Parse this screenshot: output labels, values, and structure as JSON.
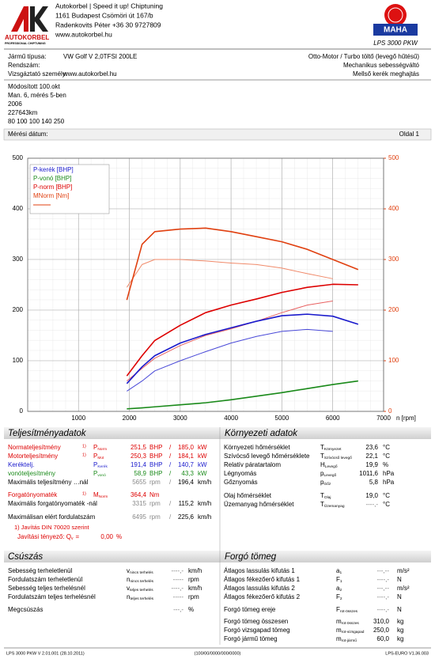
{
  "header": {
    "logo_text": "AUTOKORBEL",
    "logo_sub": "PROFESSIONAL CHIPTUNING",
    "company": [
      "Autokorbel | Speed it up! Chiptuning",
      "1161 Budapest Csömöri út 167/b",
      "Radenkovits Péter +36 30 9727809",
      "www.autokorbel.hu"
    ],
    "brand": "MAHA",
    "model": "LPS 3000 PKW"
  },
  "vehicle": {
    "left": [
      {
        "label": "Jármű típusa:",
        "value": "VW Golf V 2,0TFSI 200LE"
      },
      {
        "label": "Rendszám:"
      },
      {
        "label": "Vizsgáztató személy:",
        "value": "www.autokorbel.hu"
      }
    ],
    "right": [
      "Otto-Motor / Turbo töltő (levegő hűtésű)",
      "Mechanikus sebességváltó",
      "Mellső kerék meghajtás"
    ]
  },
  "notes": [
    "Módosított 100.okt",
    "Man. 6, mérés 5-ben",
    "2006",
    "227643km",
    "80 100 100 140 250"
  ],
  "date_label": "Mérési dátum:",
  "page": "Oldal 1",
  "chart_data": {
    "type": "line",
    "xlabel": "n [rpm]",
    "x": [
      1950,
      2250,
      2500,
      3000,
      3500,
      4000,
      4500,
      5000,
      5500,
      6000,
      6500
    ],
    "series": [
      {
        "color": "#f08a6a",
        "axis": "y2",
        "width": 1,
        "values": [
          245,
          290,
          300,
          300,
          297,
          293,
          290,
          283,
          272,
          262,
          null
        ]
      },
      {
        "color": "#e86060",
        "width": 1,
        "values": [
          60,
          85,
          105,
          130,
          150,
          163,
          178,
          195,
          210,
          218,
          null
        ]
      },
      {
        "color": "#4a4ad8",
        "width": 1,
        "values": [
          40,
          60,
          80,
          100,
          118,
          135,
          148,
          158,
          162,
          158,
          null
        ]
      },
      {
        "name": "P-kerék [BHP]",
        "color": "#1a1acc",
        "width": 1.6,
        "values": [
          55,
          88,
          110,
          135,
          152,
          165,
          178,
          189,
          192,
          188,
          172
        ]
      },
      {
        "name": "P-vonó [BHP]",
        "color": "#1a8a1a",
        "width": 1.6,
        "values": [
          5,
          7,
          9,
          13,
          17,
          23,
          30,
          37,
          45,
          53,
          60
        ]
      },
      {
        "name": "P-norm [BHP]",
        "color": "#dd0000",
        "width": 1.6,
        "values": [
          70,
          110,
          140,
          170,
          195,
          210,
          222,
          235,
          245,
          251,
          250
        ]
      },
      {
        "name": "MNorm [Nm]",
        "color": "#e04010",
        "axis": "y2",
        "width": 1.6,
        "values": [
          220,
          330,
          355,
          360,
          362,
          355,
          345,
          335,
          320,
          300,
          280
        ]
      }
    ],
    "xlim": [
      0,
      7000
    ],
    "xticks": [
      1000,
      2000,
      3000,
      4000,
      5000,
      6000,
      7000
    ],
    "ylim": [
      0,
      500
    ],
    "yticks": [
      0,
      100,
      200,
      300,
      400,
      500
    ],
    "y2lim": [
      0,
      500
    ],
    "y2ticks": [
      0,
      100,
      200,
      300,
      400,
      500
    ],
    "y2color": "#e04010",
    "grid": true,
    "legend": "upper left"
  },
  "performance": {
    "title": "Teljesítményadatok",
    "rows": [
      {
        "label": "Normateljesítmény",
        "note": "1)",
        "sym": "P",
        "sub": "Norm",
        "v1": "251,5",
        "u1": "BHP",
        "sep": "/",
        "v2": "185,0",
        "u2": "kW",
        "color": "#dd0000",
        "value_color": "#dd0000"
      },
      {
        "label": "Motorteljesítmény",
        "note": "1)",
        "sym": "P",
        "sub": "Mot",
        "v1": "250,3",
        "u1": "BHP",
        "sep": "/",
        "v2": "184,1",
        "u2": "kW",
        "color": "#dd0000",
        "value_color": "#dd0000"
      },
      {
        "label": "Keréktelj.",
        "sym": "P",
        "sub": "Kerék",
        "v1": "191,4",
        "u1": "BHP",
        "sep": "/",
        "v2": "140,7",
        "u2": "kW",
        "color": "#1a1acc",
        "value_color": "#1a1acc"
      },
      {
        "label": "vonóteljesítmény",
        "sym": "P",
        "sub": "vonó",
        "v1": "58,9",
        "u1": "BHP",
        "sep": "/",
        "v2": "43,3",
        "u2": "kW",
        "color": "#1a8a1a",
        "value_color": "#1a8a1a"
      },
      {
        "label": "Maximális teljesítmény …nál",
        "v1": "5655",
        "u1": "rpm",
        "sep": "/",
        "v2": "196,4",
        "u2": "km/h",
        "color": "#000000",
        "value_color": "#888888"
      },
      {
        "label": "Forgatónyomaték",
        "note": "1)",
        "sym": "M",
        "sub": "Norm",
        "v1": "364,4",
        "u1": "Nm",
        "color": "#dd0000",
        "value_color": "#dd0000"
      },
      {
        "label": "Maximális forgatónyomaték -nál",
        "v1": "3315",
        "u1": "rpm",
        "sep": "/",
        "v2": "115,2",
        "u2": "km/h",
        "color": "#000000",
        "value_color": "#888888"
      },
      {
        "label": "Maximálisan elért fordulatszám",
        "v1": "6495",
        "u1": "rpm",
        "sep": "/",
        "v2": "225,6",
        "u2": "km/h",
        "color": "#000000",
        "value_color": "#888888"
      }
    ],
    "footnote": "1) Javítás DIN 70020 szerint",
    "factor_label": "Javítási tényező: Q",
    "factor_sub": "v",
    "factor_eq": "=",
    "factor_value": "0,00",
    "factor_unit": "%"
  },
  "environment": {
    "title": "Környezeti adatok",
    "rows": [
      {
        "label": "Környezeti hőmérséklet",
        "sym": "T",
        "sub": "Környezet",
        "v": "23,6",
        "u": "°C"
      },
      {
        "label": "Szívócső levegő hőmérséklete",
        "sym": "T",
        "sub": "Szívócső levegő",
        "v": "22,1",
        "u": "°C"
      },
      {
        "label": "Relatív páratartalom",
        "sym": "H",
        "sub": "Levegő",
        "v": "19,9",
        "u": "%"
      },
      {
        "label": "Légnyomás",
        "sym": "p",
        "sub": "Levegő",
        "v": "1011,6",
        "u": "hPa"
      },
      {
        "label": "Gőznyomás",
        "sym": "p",
        "sub": "Gőz",
        "v": "5,8",
        "u": "hPa"
      },
      {
        "label": "Olaj hőmérséklet",
        "sym": "T",
        "sub": "Olaj",
        "v": "19,0",
        "u": "°C"
      },
      {
        "label": "Üzemanyag hőmérséklet",
        "sym": "T",
        "sub": "Üzemanyag",
        "v": "----,-",
        "u": "°C"
      }
    ]
  },
  "slip": {
    "title": "Csúszás",
    "rows": [
      {
        "label": "Sebesség terheletlenül",
        "sym": "v",
        "sub": "nincs terhelés",
        "v": "----,-",
        "u": "km/h"
      },
      {
        "label": "Fordulatszám terheletlenül",
        "sym": "n",
        "sub": "nincs terhelés",
        "v": "-----",
        "u": "rpm"
      },
      {
        "label": "Sebesség teljes terhelésnél",
        "sym": "v",
        "sub": "teljes terhelés",
        "v": "----,-",
        "u": "km/h"
      },
      {
        "label": "Fordulatszám teljes terhelésnél",
        "sym": "n",
        "sub": "teljes terhelés",
        "v": "-----",
        "u": "rpm"
      },
      {
        "label": "Megcsúszás",
        "v": "---,-",
        "u": "%"
      }
    ]
  },
  "rotating_mass": {
    "title": "Forgó tömeg",
    "rows": [
      {
        "label": "Átlagos lassulás kifutás 1",
        "sym": "a",
        "sub": "1",
        "v": "---,--",
        "u": "m/s²"
      },
      {
        "label": "Átlagos fékezőerő kifutás 1",
        "sym": "F",
        "sub": "1",
        "v": "----,-",
        "u": "N"
      },
      {
        "label": "Átlagos lassulás kifutás 2",
        "sym": "a",
        "sub": "2",
        "v": "---,--",
        "u": "m/s²"
      },
      {
        "label": "Átlagos fékezőerő kifutás 2",
        "sym": "F",
        "sub": "2",
        "v": "----,-",
        "u": "N"
      },
      {
        "label": "Forgó tömeg ereje",
        "sym": "F",
        "sub": "rot-összes",
        "v": "----,-",
        "u": "N"
      },
      {
        "label": "Forgó tömeg összesen",
        "sym": "m",
        "sub": "rot-összes",
        "v": "310,0",
        "u": "kg"
      },
      {
        "label": "Forgó vizsgapad tömeg",
        "sym": "m",
        "sub": "rot-vizsgapad",
        "v": "250,0",
        "u": "kg"
      },
      {
        "label": "Forgó jármű tömeg",
        "sym": "m",
        "sub": "rot-jármű",
        "v": "60,0",
        "u": "kg"
      }
    ]
  },
  "footer": {
    "left": "LPS 3000 PKW V 2.01.001 (28.10.2011)",
    "center": "(100/00/0000/000/0000)",
    "right": "LPS-EURO V1.36.003"
  }
}
